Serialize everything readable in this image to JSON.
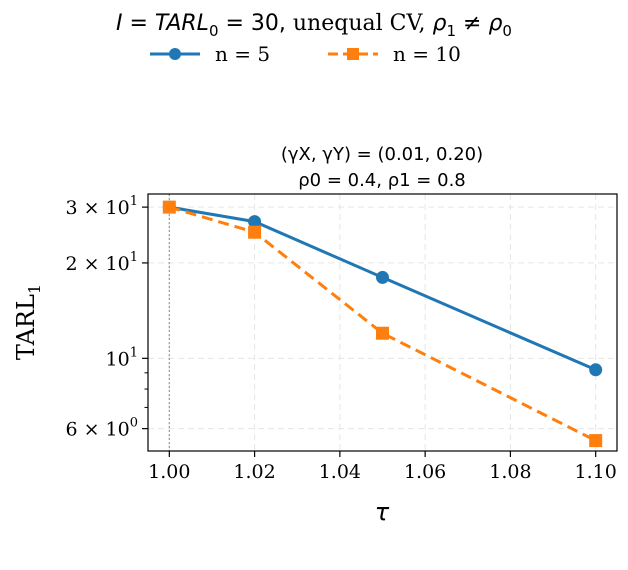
{
  "figure": {
    "suptitle_prefix": "I = TARL",
    "suptitle_sub": "0",
    "suptitle_eq": " = 30, ",
    "suptitle_text": "unequal CV, ",
    "suptitle_rho": "ρ",
    "suptitle_rho_sub1": "1",
    "suptitle_ne": " ≠ ",
    "suptitle_rho_sub0": "0"
  },
  "legend": {
    "items": [
      {
        "label": "n = 5"
      },
      {
        "label": "n = 10"
      }
    ]
  },
  "panel": {
    "title_line1": "(γX, γY) = (0.01, 0.20)",
    "title_line2": "ρ0 = 0.4,  ρ1 = 0.8"
  },
  "colors": {
    "n5": "#1f77b4",
    "n10": "#ff7f0e",
    "grid": "#e6e6e6",
    "ref_line": "#9a9a9a"
  },
  "chart_data": {
    "type": "line",
    "x": [
      1.0,
      1.02,
      1.05,
      1.1
    ],
    "series": [
      {
        "name": "n = 5",
        "values": [
          30,
          27,
          18,
          9.2
        ],
        "marker": "circle",
        "linestyle": "solid"
      },
      {
        "name": "n = 10",
        "values": [
          30,
          25,
          12,
          5.5
        ],
        "marker": "square",
        "linestyle": "dashed"
      }
    ],
    "xlabel": "τ",
    "ylabel": "TARL",
    "ylabel_sub": "1",
    "xlim": [
      0.995,
      1.105
    ],
    "ylim": [
      5.1,
      33
    ],
    "yscale": "log",
    "xticks": [
      "1.00",
      "1.02",
      "1.04",
      "1.06",
      "1.08",
      "1.10"
    ],
    "yticks": [
      {
        "value": 30,
        "mant": "3 × 10",
        "exp": "1"
      },
      {
        "value": 20,
        "mant": "2 × 10",
        "exp": "1"
      },
      {
        "value": 10,
        "mant": "10",
        "exp": "1"
      },
      {
        "value": 6,
        "mant": "6 × 10",
        "exp": "0"
      }
    ],
    "reference_x": 1.0,
    "grid": true,
    "legend_position": "top-center"
  }
}
